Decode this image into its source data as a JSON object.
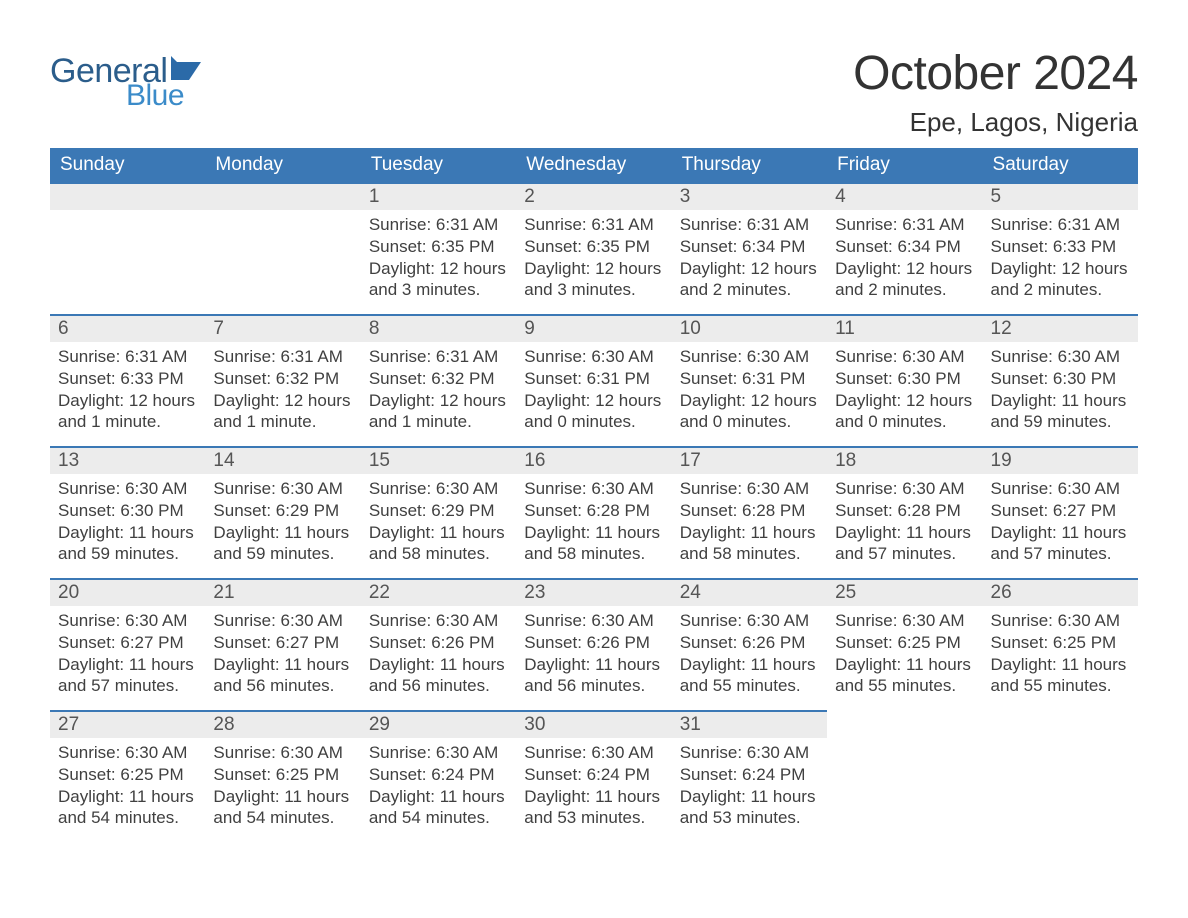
{
  "brand": {
    "general": "General",
    "blue": "Blue",
    "general_color": "#2b5d8b",
    "blue_color": "#3b8bc9",
    "flag_color": "#2b6aa8"
  },
  "header": {
    "title": "October 2024",
    "location": "Epe, Lagos, Nigeria"
  },
  "styling": {
    "header_bg": "#3b78b5",
    "header_text": "#ffffff",
    "daynum_bg": "#ececec",
    "daynum_border": "#3b78b5",
    "body_text": "#404040",
    "title_color": "#333333",
    "page_bg": "#ffffff",
    "body_fontsize": 17,
    "daynum_fontsize": 19,
    "header_fontsize": 19,
    "title_fontsize": 48,
    "location_fontsize": 26
  },
  "weekdays": [
    "Sunday",
    "Monday",
    "Tuesday",
    "Wednesday",
    "Thursday",
    "Friday",
    "Saturday"
  ],
  "weeks": [
    [
      null,
      null,
      {
        "n": "1",
        "sunrise": "Sunrise: 6:31 AM",
        "sunset": "Sunset: 6:35 PM",
        "day1": "Daylight: 12 hours",
        "day2": "and 3 minutes."
      },
      {
        "n": "2",
        "sunrise": "Sunrise: 6:31 AM",
        "sunset": "Sunset: 6:35 PM",
        "day1": "Daylight: 12 hours",
        "day2": "and 3 minutes."
      },
      {
        "n": "3",
        "sunrise": "Sunrise: 6:31 AM",
        "sunset": "Sunset: 6:34 PM",
        "day1": "Daylight: 12 hours",
        "day2": "and 2 minutes."
      },
      {
        "n": "4",
        "sunrise": "Sunrise: 6:31 AM",
        "sunset": "Sunset: 6:34 PM",
        "day1": "Daylight: 12 hours",
        "day2": "and 2 minutes."
      },
      {
        "n": "5",
        "sunrise": "Sunrise: 6:31 AM",
        "sunset": "Sunset: 6:33 PM",
        "day1": "Daylight: 12 hours",
        "day2": "and 2 minutes."
      }
    ],
    [
      {
        "n": "6",
        "sunrise": "Sunrise: 6:31 AM",
        "sunset": "Sunset: 6:33 PM",
        "day1": "Daylight: 12 hours",
        "day2": "and 1 minute."
      },
      {
        "n": "7",
        "sunrise": "Sunrise: 6:31 AM",
        "sunset": "Sunset: 6:32 PM",
        "day1": "Daylight: 12 hours",
        "day2": "and 1 minute."
      },
      {
        "n": "8",
        "sunrise": "Sunrise: 6:31 AM",
        "sunset": "Sunset: 6:32 PM",
        "day1": "Daylight: 12 hours",
        "day2": "and 1 minute."
      },
      {
        "n": "9",
        "sunrise": "Sunrise: 6:30 AM",
        "sunset": "Sunset: 6:31 PM",
        "day1": "Daylight: 12 hours",
        "day2": "and 0 minutes."
      },
      {
        "n": "10",
        "sunrise": "Sunrise: 6:30 AM",
        "sunset": "Sunset: 6:31 PM",
        "day1": "Daylight: 12 hours",
        "day2": "and 0 minutes."
      },
      {
        "n": "11",
        "sunrise": "Sunrise: 6:30 AM",
        "sunset": "Sunset: 6:30 PM",
        "day1": "Daylight: 12 hours",
        "day2": "and 0 minutes."
      },
      {
        "n": "12",
        "sunrise": "Sunrise: 6:30 AM",
        "sunset": "Sunset: 6:30 PM",
        "day1": "Daylight: 11 hours",
        "day2": "and 59 minutes."
      }
    ],
    [
      {
        "n": "13",
        "sunrise": "Sunrise: 6:30 AM",
        "sunset": "Sunset: 6:30 PM",
        "day1": "Daylight: 11 hours",
        "day2": "and 59 minutes."
      },
      {
        "n": "14",
        "sunrise": "Sunrise: 6:30 AM",
        "sunset": "Sunset: 6:29 PM",
        "day1": "Daylight: 11 hours",
        "day2": "and 59 minutes."
      },
      {
        "n": "15",
        "sunrise": "Sunrise: 6:30 AM",
        "sunset": "Sunset: 6:29 PM",
        "day1": "Daylight: 11 hours",
        "day2": "and 58 minutes."
      },
      {
        "n": "16",
        "sunrise": "Sunrise: 6:30 AM",
        "sunset": "Sunset: 6:28 PM",
        "day1": "Daylight: 11 hours",
        "day2": "and 58 minutes."
      },
      {
        "n": "17",
        "sunrise": "Sunrise: 6:30 AM",
        "sunset": "Sunset: 6:28 PM",
        "day1": "Daylight: 11 hours",
        "day2": "and 58 minutes."
      },
      {
        "n": "18",
        "sunrise": "Sunrise: 6:30 AM",
        "sunset": "Sunset: 6:28 PM",
        "day1": "Daylight: 11 hours",
        "day2": "and 57 minutes."
      },
      {
        "n": "19",
        "sunrise": "Sunrise: 6:30 AM",
        "sunset": "Sunset: 6:27 PM",
        "day1": "Daylight: 11 hours",
        "day2": "and 57 minutes."
      }
    ],
    [
      {
        "n": "20",
        "sunrise": "Sunrise: 6:30 AM",
        "sunset": "Sunset: 6:27 PM",
        "day1": "Daylight: 11 hours",
        "day2": "and 57 minutes."
      },
      {
        "n": "21",
        "sunrise": "Sunrise: 6:30 AM",
        "sunset": "Sunset: 6:27 PM",
        "day1": "Daylight: 11 hours",
        "day2": "and 56 minutes."
      },
      {
        "n": "22",
        "sunrise": "Sunrise: 6:30 AM",
        "sunset": "Sunset: 6:26 PM",
        "day1": "Daylight: 11 hours",
        "day2": "and 56 minutes."
      },
      {
        "n": "23",
        "sunrise": "Sunrise: 6:30 AM",
        "sunset": "Sunset: 6:26 PM",
        "day1": "Daylight: 11 hours",
        "day2": "and 56 minutes."
      },
      {
        "n": "24",
        "sunrise": "Sunrise: 6:30 AM",
        "sunset": "Sunset: 6:26 PM",
        "day1": "Daylight: 11 hours",
        "day2": "and 55 minutes."
      },
      {
        "n": "25",
        "sunrise": "Sunrise: 6:30 AM",
        "sunset": "Sunset: 6:25 PM",
        "day1": "Daylight: 11 hours",
        "day2": "and 55 minutes."
      },
      {
        "n": "26",
        "sunrise": "Sunrise: 6:30 AM",
        "sunset": "Sunset: 6:25 PM",
        "day1": "Daylight: 11 hours",
        "day2": "and 55 minutes."
      }
    ],
    [
      {
        "n": "27",
        "sunrise": "Sunrise: 6:30 AM",
        "sunset": "Sunset: 6:25 PM",
        "day1": "Daylight: 11 hours",
        "day2": "and 54 minutes."
      },
      {
        "n": "28",
        "sunrise": "Sunrise: 6:30 AM",
        "sunset": "Sunset: 6:25 PM",
        "day1": "Daylight: 11 hours",
        "day2": "and 54 minutes."
      },
      {
        "n": "29",
        "sunrise": "Sunrise: 6:30 AM",
        "sunset": "Sunset: 6:24 PM",
        "day1": "Daylight: 11 hours",
        "day2": "and 54 minutes."
      },
      {
        "n": "30",
        "sunrise": "Sunrise: 6:30 AM",
        "sunset": "Sunset: 6:24 PM",
        "day1": "Daylight: 11 hours",
        "day2": "and 53 minutes."
      },
      {
        "n": "31",
        "sunrise": "Sunrise: 6:30 AM",
        "sunset": "Sunset: 6:24 PM",
        "day1": "Daylight: 11 hours",
        "day2": "and 53 minutes."
      },
      null,
      null
    ]
  ]
}
